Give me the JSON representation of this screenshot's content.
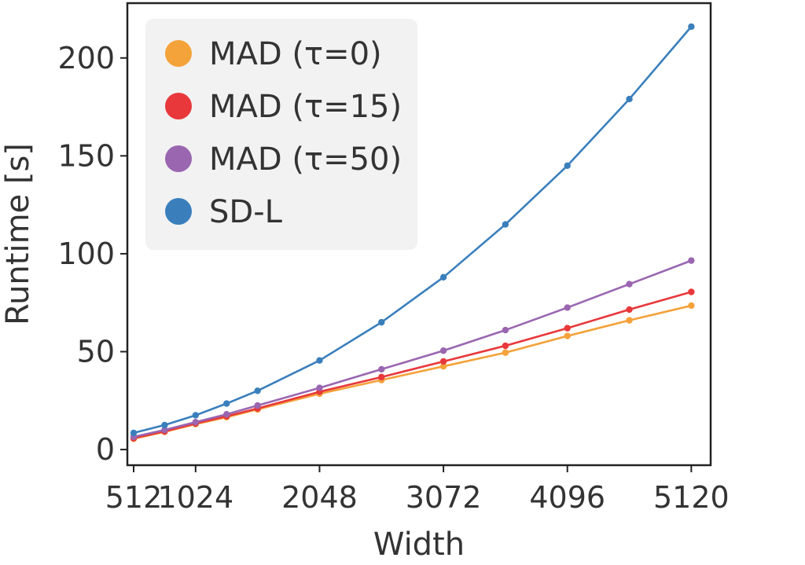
{
  "chart_data": {
    "type": "line",
    "xlabel": "Width",
    "ylabel": "Runtime [s]",
    "xlim": [
      460,
      5280
    ],
    "ylim": [
      -8,
      228
    ],
    "x_ticks": [
      512,
      1024,
      2048,
      3072,
      4096,
      5120
    ],
    "x_tick_labels": [
      "512",
      "1024",
      "2048",
      "3072",
      "4096",
      "5120"
    ],
    "y_ticks": [
      0,
      50,
      100,
      150,
      200
    ],
    "y_tick_labels": [
      "0",
      "50",
      "100",
      "150",
      "200"
    ],
    "x": [
      512,
      768,
      1024,
      1280,
      1536,
      2048,
      2560,
      3072,
      3584,
      4096,
      4608,
      5120
    ],
    "legend_position": "upper-left",
    "series": [
      {
        "name": "MAD (τ=0)",
        "color": "#f4a23a",
        "values": [
          5.5,
          9,
          13,
          16.5,
          20.5,
          28.5,
          35.5,
          42.5,
          49.5,
          58,
          66,
          73.5
        ]
      },
      {
        "name": "MAD (τ=15)",
        "color": "#e8383b",
        "values": [
          5.8,
          9.3,
          13.3,
          17,
          21,
          29.5,
          37,
          45,
          53,
          62,
          71.5,
          80.5
        ]
      },
      {
        "name": "MAD (τ=50)",
        "color": "#9a66b0",
        "values": [
          6.5,
          10,
          14,
          18,
          22.5,
          31.5,
          41,
          50.5,
          61,
          72.5,
          84.5,
          96.5
        ]
      },
      {
        "name": "SD-L",
        "color": "#3a7fbc",
        "values": [
          8.5,
          12.5,
          17.5,
          23.5,
          30,
          45.5,
          65,
          88,
          115,
          145,
          179,
          216
        ]
      }
    ]
  }
}
